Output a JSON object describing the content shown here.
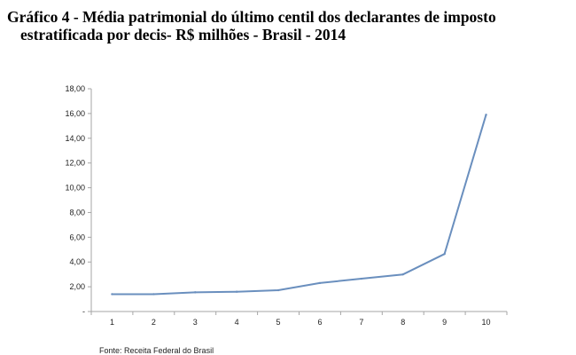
{
  "title": {
    "line1": "Gráfico 4 - Média patrimonial do último centil dos declarantes de imposto",
    "line2": "estratificada por decis- R$ milhões - Brasil - 2014"
  },
  "source": "Fonte: Receita Federal do Brasil",
  "chart_data": {
    "type": "line",
    "categories": [
      "1",
      "2",
      "3",
      "4",
      "5",
      "6",
      "7",
      "8",
      "9",
      "10"
    ],
    "series": [
      {
        "values": [
          1.4,
          1.4,
          1.55,
          1.6,
          1.72,
          2.3,
          2.65,
          3.0,
          4.65,
          15.9
        ]
      }
    ],
    "ylim": [
      0,
      18
    ],
    "yticks": [
      "-",
      "2,00",
      "4,00",
      "6,00",
      "8,00",
      "10,00",
      "12,00",
      "14,00",
      "16,00",
      "18,00"
    ],
    "ytick_values": [
      0,
      2,
      4,
      6,
      8,
      10,
      12,
      14,
      16,
      18
    ],
    "xlabel": "",
    "ylabel": "",
    "grid": false,
    "legend": "none",
    "line_color": "#6a8fbe",
    "axis_color": "#a6a6a6"
  }
}
